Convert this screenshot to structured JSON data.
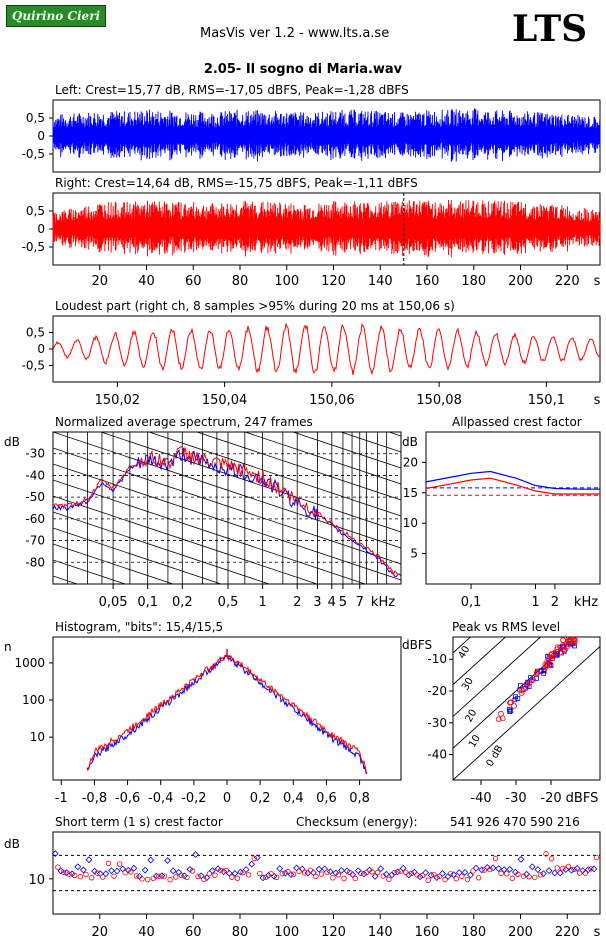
{
  "header": {
    "logo_text": "Quirino Cieri",
    "app_title": "MasVis ver 1.2 - www.lts.a.se",
    "brand": "LTS",
    "file_title": "2.05- Il sogno di Maria.wav"
  },
  "colors": {
    "left": "#0000ff",
    "right": "#ff0000",
    "grid": "#000000"
  },
  "panels": {
    "left": {
      "title": "Left: Crest=15,77 dB, RMS=-17,05 dBFS, Peak=-1,28 dBFS",
      "yticks": [
        "0,5",
        "0",
        "-0,5"
      ]
    },
    "right": {
      "title": "Right: Crest=14,64 dB, RMS=-15,75 dBFS, Peak=-1,11 dBFS",
      "yticks": [
        "0,5",
        "0",
        "-0,5"
      ],
      "marker_s": 150.06
    },
    "time_axis": {
      "ticks": [
        "20",
        "40",
        "60",
        "80",
        "100",
        "120",
        "140",
        "160",
        "180",
        "200",
        "220"
      ],
      "unit": "s"
    },
    "loudest": {
      "title": "Loudest part (right ch, 8 samples >95% during 20 ms at 150,06 s)",
      "yticks": [
        "0,5",
        "0",
        "-0,5"
      ],
      "xticks": [
        "150,02",
        "150,04",
        "150,06",
        "150,08",
        "150,1"
      ],
      "unit": "s"
    },
    "spectrum": {
      "title": "Normalized average spectrum, 247 frames",
      "ylabel": "dB",
      "yticks": [
        "-30",
        "-40",
        "-50",
        "-60",
        "-70",
        "-80"
      ],
      "xticks": [
        "0,05",
        "0,1",
        "0,2",
        "0,5",
        "1",
        "2",
        "3",
        "4",
        "5",
        "7"
      ],
      "unit": "kHz"
    },
    "allpass": {
      "title": "Allpassed crest factor",
      "ylabel": "dB",
      "yticks": [
        "20",
        "15",
        "10",
        "5"
      ],
      "xticks": [
        "0,1",
        "1",
        "2"
      ],
      "unit": "kHz"
    },
    "histogram": {
      "title": "Histogram, \"bits\": 15,4/15,5",
      "ylabel": "n",
      "yticks": [
        "1000",
        "100",
        "10"
      ],
      "xticks": [
        "-1",
        "-0,8",
        "-0,6",
        "-0,4",
        "-0,2",
        "0",
        "0,2",
        "0,4",
        "0,6",
        "0,8"
      ]
    },
    "peakrms": {
      "title": "Peak vs RMS level",
      "ylabel": "dBFS",
      "yticks": [
        "-10",
        "-20",
        "-30",
        "-40"
      ],
      "xticks": [
        "-40",
        "-30",
        "-20"
      ],
      "unit": "dBFS",
      "diag_labels": [
        "40",
        "30",
        "20",
        "10",
        "0 dB"
      ]
    },
    "crest1s": {
      "title": "Short term (1 s) crest factor",
      "checksum_label": "Checksum (energy):",
      "checksum_value": "541 926 470 590 216",
      "ylabel": "dB",
      "yticks": [
        "10"
      ],
      "xticks": [
        "20",
        "40",
        "60",
        "80",
        "100",
        "120",
        "140",
        "160",
        "180",
        "200",
        "220"
      ],
      "unit": "s"
    }
  },
  "chart_data": [
    {
      "type": "line",
      "title": "Left: Crest=15,77 dB, RMS=-17,05 dBFS, Peak=-1,28 dBFS",
      "xlabel": "s",
      "ylim": [
        -1,
        1
      ],
      "xlim": [
        0,
        234
      ],
      "series": [
        {
          "name": "Left",
          "envelope_x": [
            0,
            10,
            20,
            30,
            40,
            50,
            60,
            70,
            80,
            90,
            100,
            110,
            120,
            130,
            140,
            150,
            160,
            170,
            180,
            190,
            200,
            210,
            220,
            230
          ],
          "envelope": [
            0.6,
            0.65,
            0.72,
            0.7,
            0.75,
            0.72,
            0.7,
            0.68,
            0.74,
            0.72,
            0.7,
            0.66,
            0.72,
            0.74,
            0.7,
            0.66,
            0.72,
            0.75,
            0.78,
            0.72,
            0.7,
            0.66,
            0.62,
            0.55
          ]
        }
      ]
    },
    {
      "type": "line",
      "title": "Right: Crest=14,64 dB, RMS=-15,75 dBFS, Peak=-1,11 dBFS",
      "xlabel": "s",
      "ylim": [
        -1,
        1
      ],
      "xlim": [
        0,
        234
      ],
      "series": [
        {
          "name": "Right",
          "envelope_x": [
            0,
            10,
            20,
            30,
            40,
            50,
            60,
            70,
            80,
            90,
            100,
            110,
            120,
            130,
            140,
            150,
            160,
            170,
            180,
            190,
            200,
            210,
            220,
            230
          ],
          "envelope": [
            0.5,
            0.6,
            0.78,
            0.75,
            0.8,
            0.78,
            0.75,
            0.72,
            0.8,
            0.78,
            0.74,
            0.7,
            0.78,
            0.8,
            0.75,
            0.88,
            0.8,
            0.82,
            0.84,
            0.8,
            0.76,
            0.72,
            0.66,
            0.55
          ]
        }
      ]
    },
    {
      "type": "line",
      "title": "Loudest part (right ch, 8 samples >95% during 20 ms at 150,06 s)",
      "xlabel": "s",
      "ylim": [
        -1,
        1
      ],
      "xlim": [
        150.008,
        150.11
      ],
      "series": [
        {
          "name": "Right",
          "amplitude": [
            0.2,
            0.3,
            0.45,
            0.55,
            0.6,
            0.62,
            0.6,
            0.65,
            0.7,
            0.75,
            0.8,
            0.72,
            0.7,
            0.6,
            0.62,
            0.55,
            0.5,
            0.45,
            0.4,
            0.35,
            0.3
          ]
        }
      ]
    },
    {
      "type": "line",
      "title": "Normalized average spectrum, 247 frames",
      "xlabel": "kHz",
      "ylabel": "dB",
      "ylim": [
        -90,
        -20
      ],
      "xscale": "log",
      "x": [
        0.02,
        0.03,
        0.04,
        0.05,
        0.07,
        0.1,
        0.15,
        0.2,
        0.3,
        0.5,
        0.7,
        1,
        1.5,
        2,
        3,
        4,
        5,
        7,
        10,
        14
      ],
      "series": [
        {
          "name": "Left",
          "values": [
            -55,
            -52,
            -43,
            -47,
            -37,
            -33,
            -35,
            -30,
            -34,
            -37,
            -39,
            -42,
            -48,
            -53,
            -58,
            -63,
            -67,
            -72,
            -78,
            -86
          ]
        },
        {
          "name": "Right",
          "values": [
            -54,
            -51,
            -42,
            -46,
            -36,
            -32,
            -34,
            -29,
            -33,
            -36,
            -38,
            -41,
            -47,
            -52,
            -57,
            -62,
            -66,
            -71,
            -77,
            -85
          ]
        }
      ]
    },
    {
      "type": "line",
      "title": "Allpassed crest factor",
      "xlabel": "kHz",
      "ylabel": "dB",
      "ylim": [
        0,
        25
      ],
      "xscale": "log",
      "x": [
        0.02,
        0.05,
        0.1,
        0.2,
        0.5,
        1,
        2,
        5,
        10
      ],
      "series": [
        {
          "name": "Left",
          "values": [
            16.8,
            17.6,
            18.2,
            18.5,
            17.4,
            16.2,
            15.7,
            15.6,
            15.6
          ]
        },
        {
          "name": "Right",
          "values": [
            15.7,
            16.5,
            17.1,
            17.4,
            16.3,
            15.3,
            14.8,
            14.8,
            14.8
          ]
        }
      ],
      "reference_lines": [
        {
          "name": "Left",
          "value": 15.8
        },
        {
          "name": "Right",
          "value": 14.6
        }
      ]
    },
    {
      "type": "line",
      "title": "Histogram, \"bits\": 15,4/15,5",
      "ylabel": "n",
      "yscale": "log",
      "xlim": [
        -1.05,
        1.05
      ],
      "x": [
        -0.85,
        -0.8,
        -0.6,
        -0.4,
        -0.2,
        -0.1,
        0,
        0.1,
        0.2,
        0.4,
        0.6,
        0.8,
        0.85
      ],
      "series": [
        {
          "name": "Left",
          "values": [
            1,
            3,
            12,
            60,
            300,
            700,
            1500,
            700,
            300,
            60,
            12,
            3,
            1
          ]
        },
        {
          "name": "Right",
          "values": [
            1,
            4,
            15,
            75,
            350,
            800,
            1600,
            800,
            350,
            75,
            15,
            4,
            1
          ]
        }
      ]
    },
    {
      "type": "scatter",
      "title": "Peak vs RMS level",
      "xlabel": "dBFS",
      "ylabel": "dBFS",
      "xlim": [
        -48,
        -6
      ],
      "ylim": [
        -48,
        -3
      ],
      "series": [
        {
          "name": "Left",
          "points": [
            [
              -32,
              -26
            ],
            [
              -30,
              -22
            ],
            [
              -28,
              -19
            ],
            [
              -26,
              -18
            ],
            [
              -25,
              -16
            ],
            [
              -23,
              -14
            ],
            [
              -22,
              -13
            ],
            [
              -21,
              -12
            ],
            [
              -20,
              -10
            ],
            [
              -19,
              -9
            ],
            [
              -18,
              -8
            ],
            [
              -17,
              -7
            ],
            [
              -16,
              -6
            ],
            [
              -15,
              -5
            ],
            [
              -14,
              -5
            ]
          ]
        },
        {
          "name": "Right",
          "points": [
            [
              -34,
              -28
            ],
            [
              -31,
              -24
            ],
            [
              -28,
              -20
            ],
            [
              -26,
              -17
            ],
            [
              -24,
              -15
            ],
            [
              -22,
              -12
            ],
            [
              -21,
              -11
            ],
            [
              -20,
              -10
            ],
            [
              -19,
              -8
            ],
            [
              -18,
              -7
            ],
            [
              -17,
              -6
            ],
            [
              -16,
              -5
            ],
            [
              -15,
              -5
            ],
            [
              -14,
              -4
            ],
            [
              -13,
              -4
            ]
          ]
        }
      ]
    },
    {
      "type": "scatter",
      "title": "Short term (1 s) crest factor",
      "xlabel": "s",
      "ylabel": "dB",
      "xlim": [
        0,
        234
      ],
      "ylim": [
        4,
        18
      ],
      "x": [
        5,
        15,
        25,
        35,
        45,
        55,
        65,
        75,
        85,
        95,
        105,
        115,
        125,
        135,
        145,
        155,
        165,
        175,
        185,
        195,
        205,
        215,
        225
      ],
      "series": [
        {
          "name": "Left",
          "values": [
            11.8,
            11.2,
            10.9,
            11.1,
            10.8,
            11.0,
            10.9,
            11.3,
            10.7,
            11.0,
            11.2,
            11.4,
            10.9,
            10.8,
            11.1,
            11.0,
            10.7,
            10.9,
            11.3,
            11.0,
            11.4,
            11.6,
            12.1
          ]
        },
        {
          "name": "Right",
          "values": [
            11.4,
            10.8,
            10.5,
            10.7,
            10.4,
            10.6,
            10.5,
            10.9,
            10.3,
            10.6,
            10.8,
            11.0,
            10.5,
            10.4,
            10.7,
            10.6,
            10.3,
            10.5,
            10.9,
            10.6,
            11.0,
            11.2,
            11.7
          ]
        }
      ],
      "reference_lines": [
        {
          "value": 14.0
        }
      ]
    }
  ]
}
